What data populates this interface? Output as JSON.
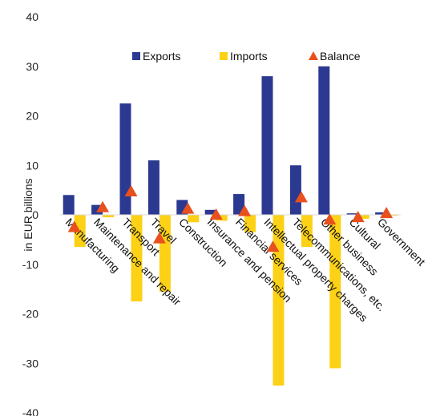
{
  "chart_data": {
    "type": "bar",
    "ylabel": "in EUR billions",
    "ylim": [
      -40,
      40
    ],
    "yticks": [
      40,
      30,
      20,
      10,
      0,
      -10,
      -20,
      -30,
      -40
    ],
    "grid": false,
    "legend_position": "top-right",
    "categories": [
      "Manufacturing",
      "Maintenance and repair",
      "Transport",
      "Travel",
      "Construction",
      "Insurance and pension",
      "Financial services",
      "Intellectual property charges",
      "Telecommunications, etc.",
      "Other business",
      "Cultural",
      "Government"
    ],
    "series": [
      {
        "name": "Exports",
        "kind": "bar",
        "color": "#2b3990",
        "values": [
          4,
          2,
          22.5,
          11,
          3,
          1,
          4.2,
          28,
          10,
          30,
          0.3,
          0.5
        ]
      },
      {
        "name": "Imports",
        "kind": "bar",
        "color": "#fcd116",
        "values": [
          -6.5,
          -0.5,
          -17.5,
          -15.5,
          -1.5,
          -1.2,
          -3.5,
          -34.5,
          -6.5,
          -31,
          -0.8,
          -0.2
        ]
      },
      {
        "name": "Balance",
        "kind": "marker",
        "color": "#e8501e",
        "values": [
          -2.5,
          1.5,
          4.7,
          -4.8,
          1.2,
          0,
          0.7,
          -6.5,
          3.5,
          -1,
          -0.5,
          0.3
        ]
      }
    ]
  }
}
